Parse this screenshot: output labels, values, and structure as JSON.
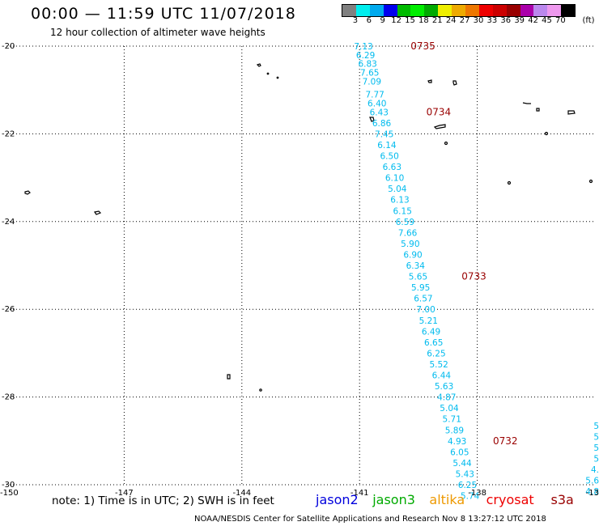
{
  "header": {
    "title": "00:00 — 11:59 UTC 11/07/2018",
    "subtitle": "12 hour collection of altimeter wave heights"
  },
  "colorbar": {
    "colors": [
      "#808080",
      "#00eeee",
      "#00aaee",
      "#0000ee",
      "#00bb00",
      "#00ee00",
      "#00aa00",
      "#eeee00",
      "#eeaa00",
      "#ee7700",
      "#ee0000",
      "#cc0000",
      "#990000",
      "#aa00aa",
      "#bb88ee",
      "#ee99ee",
      "#000000"
    ],
    "labels": [
      "3",
      "6",
      "9",
      "12",
      "15",
      "18",
      "21",
      "24",
      "27",
      "30",
      "33",
      "36",
      "39",
      "42",
      "45",
      "70",
      "(ft)"
    ]
  },
  "axes": {
    "lat_labels": [
      "-20",
      "-22",
      "-24",
      "-26",
      "-28",
      "-30"
    ],
    "lon_labels": [
      "-150",
      "-147",
      "-144",
      "-141",
      "-138",
      "-13"
    ]
  },
  "map_data": {
    "lat_range": [
      -30,
      -20
    ],
    "lon_range": [
      -150,
      -135
    ],
    "track_color": "#00bbee",
    "time_color": "#990000",
    "swh_track": [
      {
        "lat": -20.0,
        "val": "7.13"
      },
      {
        "lat": -20.2,
        "val": "6.29"
      },
      {
        "lat": -20.4,
        "val": "6.83"
      },
      {
        "lat": -20.6,
        "val": "7.65"
      },
      {
        "lat": -20.8,
        "val": "7.09"
      },
      {
        "lat": -21.1,
        "val": "7.77"
      },
      {
        "lat": -21.3,
        "val": "6.40"
      },
      {
        "lat": -21.5,
        "val": "6.43"
      },
      {
        "lat": -21.75,
        "val": "6.86"
      },
      {
        "lat": -22.0,
        "val": "7.45"
      },
      {
        "lat": -22.25,
        "val": "6.14"
      },
      {
        "lat": -22.5,
        "val": "6.50"
      },
      {
        "lat": -22.75,
        "val": "6.63"
      },
      {
        "lat": -23.0,
        "val": "6.10"
      },
      {
        "lat": -23.25,
        "val": "5.04"
      },
      {
        "lat": -23.5,
        "val": "6.13"
      },
      {
        "lat": -23.75,
        "val": "6.15"
      },
      {
        "lat": -24.0,
        "val": "6.59"
      },
      {
        "lat": -24.25,
        "val": "7.66"
      },
      {
        "lat": -24.5,
        "val": "5.90"
      },
      {
        "lat": -24.75,
        "val": "6.90"
      },
      {
        "lat": -25.0,
        "val": "6.34"
      },
      {
        "lat": -25.25,
        "val": "5.65"
      },
      {
        "lat": -25.5,
        "val": "5.95"
      },
      {
        "lat": -25.75,
        "val": "6.57"
      },
      {
        "lat": -26.0,
        "val": "7.00"
      },
      {
        "lat": -26.25,
        "val": "5.21"
      },
      {
        "lat": -26.5,
        "val": "6.49"
      },
      {
        "lat": -26.75,
        "val": "6.65"
      },
      {
        "lat": -27.0,
        "val": "6.25"
      },
      {
        "lat": -27.25,
        "val": "5.52"
      },
      {
        "lat": -27.5,
        "val": "6.44"
      },
      {
        "lat": -27.75,
        "val": "5.63"
      },
      {
        "lat": -28.0,
        "val": "4.87"
      },
      {
        "lat": -28.25,
        "val": "5.04"
      },
      {
        "lat": -28.5,
        "val": "5.71"
      },
      {
        "lat": -28.75,
        "val": "5.89"
      },
      {
        "lat": -29.0,
        "val": "4.93"
      },
      {
        "lat": -29.25,
        "val": "6.05"
      },
      {
        "lat": -29.5,
        "val": "5.44"
      },
      {
        "lat": -29.75,
        "val": "5.43"
      },
      {
        "lat": -30.0,
        "val": "6.25"
      },
      {
        "lat": -30.25,
        "val": "5.74"
      }
    ],
    "time_marks": [
      {
        "label": "0735",
        "lat": -20.0,
        "lon": -139.7
      },
      {
        "label": "0734",
        "lat": -21.5,
        "lon": -139.3
      },
      {
        "label": "0733",
        "lat": -25.25,
        "lon": -138.4
      },
      {
        "label": "0732",
        "lat": -29.0,
        "lon": -137.6
      }
    ],
    "edge_track": [
      {
        "lat": -28.65,
        "val": "5"
      },
      {
        "lat": -28.9,
        "val": "5"
      },
      {
        "lat": -29.15,
        "val": "5"
      },
      {
        "lat": -29.4,
        "val": "5"
      },
      {
        "lat": -29.65,
        "val": "4."
      },
      {
        "lat": -29.9,
        "val": "5.6"
      },
      {
        "lat": -30.15,
        "val": "4.8"
      }
    ]
  },
  "footer": {
    "note": "note:  1) Time is in UTC;  2) SWH is in feet",
    "satellites": [
      {
        "name": "jason2",
        "color": "#0000dd"
      },
      {
        "name": "jason3",
        "color": "#00aa00"
      },
      {
        "name": "altika",
        "color": "#ee9900"
      },
      {
        "name": "cryosat",
        "color": "#ee0000"
      },
      {
        "name": "s3a",
        "color": "#990000"
      }
    ],
    "credit": "NOAA/NESDIS Center for Satellite Applications and Research    Nov  8 13:27:12 UTC 2018"
  }
}
